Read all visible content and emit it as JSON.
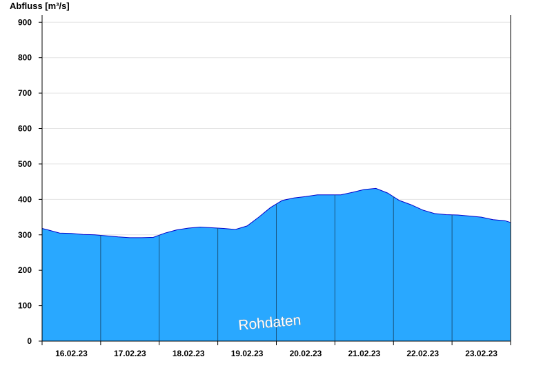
{
  "chart_data": {
    "type": "area",
    "ylabel": "Abfluss [m³/s]",
    "ylim": [
      0,
      920
    ],
    "yticks": [
      0,
      100,
      200,
      300,
      400,
      500,
      600,
      700,
      800,
      900
    ],
    "categories": [
      "16.02.23",
      "17.02.23",
      "18.02.23",
      "19.02.23",
      "20.02.23",
      "21.02.23",
      "22.02.23",
      "23.02.23"
    ],
    "x": [
      0,
      0.1,
      0.3,
      0.5,
      0.7,
      0.9,
      1.1,
      1.3,
      1.5,
      1.7,
      1.9,
      2.1,
      2.3,
      2.5,
      2.7,
      2.9,
      3.1,
      3.3,
      3.5,
      3.7,
      3.9,
      4.1,
      4.3,
      4.5,
      4.7,
      4.9,
      5.1,
      5.3,
      5.5,
      5.7,
      5.9,
      6.1,
      6.3,
      6.5,
      6.7,
      6.9,
      7.1,
      7.3,
      7.5,
      7.7,
      7.9,
      8.0
    ],
    "series": [
      {
        "values": [
          318,
          314,
          305,
          304,
          301,
          300,
          297,
          294,
          292,
          292,
          293,
          305,
          314,
          319,
          322,
          320,
          318,
          315,
          325,
          350,
          377,
          397,
          404,
          408,
          413,
          413,
          413,
          420,
          428,
          431,
          418,
          397,
          385,
          370,
          360,
          357,
          356,
          353,
          350,
          343,
          340,
          335
        ]
      }
    ],
    "grid": true,
    "annotations": [
      "Rohdaten"
    ],
    "colors": {
      "fill": "#29a8ff",
      "line": "#0000cc",
      "separator": "#1a5580",
      "grid": "#e4e4e4",
      "axis": "#000000"
    }
  }
}
